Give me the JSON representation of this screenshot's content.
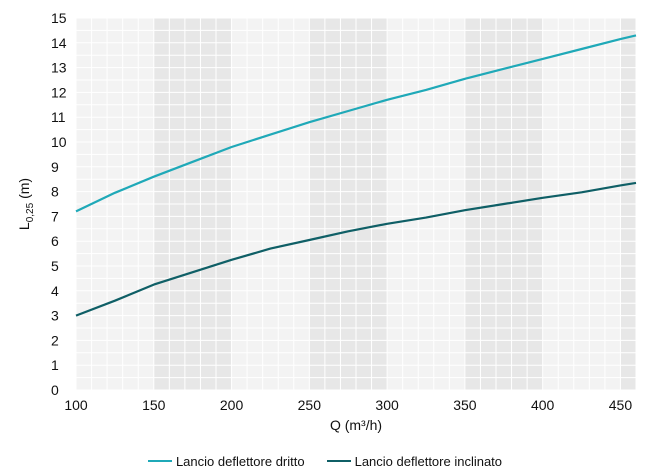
{
  "chart_data": {
    "type": "line",
    "title": "",
    "xlabel": "Q (m³/h)",
    "ylabel": "L",
    "ylabel_subscript": "0,25",
    "ylabel_unit": "(m)",
    "xlim": [
      100,
      460
    ],
    "ylim": [
      0,
      15
    ],
    "xticks": [
      100,
      150,
      200,
      250,
      300,
      350,
      400,
      450
    ],
    "yticks": [
      0,
      1,
      2,
      3,
      4,
      5,
      6,
      7,
      8,
      9,
      10,
      11,
      12,
      13,
      14,
      15
    ],
    "grid": true,
    "legend_position": "bottom",
    "series": [
      {
        "name": "Lancio deflettore dritto",
        "color": "#1fa9b8",
        "x": [
          100,
          125,
          150,
          175,
          200,
          225,
          250,
          275,
          300,
          325,
          350,
          375,
          400,
          425,
          450,
          460
        ],
        "y": [
          7.2,
          7.95,
          8.6,
          9.2,
          9.8,
          10.3,
          10.8,
          11.25,
          11.7,
          12.1,
          12.55,
          12.95,
          13.35,
          13.75,
          14.15,
          14.3
        ]
      },
      {
        "name": "Lancio deflettore inclinato",
        "color": "#0f5f66",
        "x": [
          100,
          125,
          150,
          175,
          200,
          225,
          250,
          275,
          300,
          325,
          350,
          375,
          400,
          425,
          450,
          460
        ],
        "y": [
          3.0,
          3.6,
          4.25,
          4.75,
          5.25,
          5.7,
          6.05,
          6.4,
          6.7,
          6.95,
          7.25,
          7.5,
          7.75,
          7.97,
          8.25,
          8.35
        ]
      }
    ]
  }
}
